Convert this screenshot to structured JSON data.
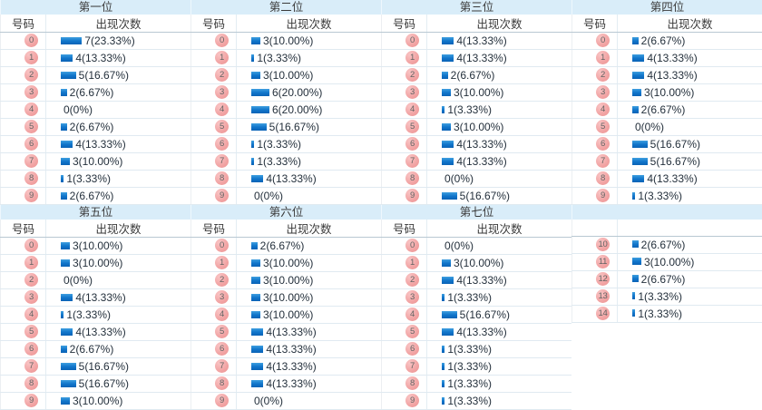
{
  "page": {
    "description_labels": {
      "number_column": "号码",
      "count_column": "出现次数"
    },
    "colors": {
      "header_bg": "#d9edf9",
      "header_text": "#3a3a3a",
      "row_border": "#e0eaf1",
      "subheader_border": "#b9c8d2",
      "bar_top": "#3f9fe0",
      "bar_bottom": "#0a63b6",
      "ball_bg": "#f2a6a6",
      "ball_text": "#636363",
      "value_text": "#24303c"
    }
  },
  "chart_data": [
    {
      "type": "bar",
      "title": "第一位",
      "show_headers": true,
      "categories": [
        "0",
        "1",
        "2",
        "3",
        "4",
        "5",
        "6",
        "7",
        "8",
        "9"
      ],
      "values": [
        7,
        4,
        5,
        2,
        0,
        2,
        4,
        3,
        1,
        2
      ],
      "percents": [
        23.33,
        13.33,
        16.67,
        6.67,
        0,
        6.67,
        13.33,
        10,
        3.33,
        6.67
      ],
      "labels": [
        "7(23.33%)",
        "4(13.33%)",
        "5(16.67%)",
        "2(6.67%)",
        "0(0%)",
        "2(6.67%)",
        "4(13.33%)",
        "3(10.00%)",
        "1(3.33%)",
        "2(6.67%)"
      ]
    },
    {
      "type": "bar",
      "title": "第二位",
      "show_headers": true,
      "categories": [
        "0",
        "1",
        "2",
        "3",
        "4",
        "5",
        "6",
        "7",
        "8",
        "9"
      ],
      "values": [
        3,
        1,
        3,
        6,
        6,
        5,
        1,
        1,
        4,
        0
      ],
      "percents": [
        10,
        3.33,
        10,
        20,
        20,
        16.67,
        3.33,
        3.33,
        13.33,
        0
      ],
      "labels": [
        "3(10.00%)",
        "1(3.33%)",
        "3(10.00%)",
        "6(20.00%)",
        "6(20.00%)",
        "5(16.67%)",
        "1(3.33%)",
        "1(3.33%)",
        "4(13.33%)",
        "0(0%)"
      ]
    },
    {
      "type": "bar",
      "title": "第三位",
      "show_headers": true,
      "categories": [
        "0",
        "1",
        "2",
        "3",
        "4",
        "5",
        "6",
        "7",
        "8",
        "9"
      ],
      "values": [
        4,
        4,
        2,
        3,
        1,
        3,
        4,
        4,
        0,
        5
      ],
      "percents": [
        13.33,
        13.33,
        6.67,
        10,
        3.33,
        10,
        13.33,
        13.33,
        0,
        16.67
      ],
      "labels": [
        "4(13.33%)",
        "4(13.33%)",
        "2(6.67%)",
        "3(10.00%)",
        "1(3.33%)",
        "3(10.00%)",
        "4(13.33%)",
        "4(13.33%)",
        "0(0%)",
        "5(16.67%)"
      ]
    },
    {
      "type": "bar",
      "title": "第四位",
      "show_headers": true,
      "categories": [
        "0",
        "1",
        "2",
        "3",
        "4",
        "5",
        "6",
        "7",
        "8",
        "9"
      ],
      "values": [
        2,
        4,
        4,
        3,
        2,
        0,
        5,
        5,
        4,
        1
      ],
      "percents": [
        6.67,
        13.33,
        13.33,
        10,
        6.67,
        0,
        16.67,
        16.67,
        13.33,
        3.33
      ],
      "labels": [
        "2(6.67%)",
        "4(13.33%)",
        "4(13.33%)",
        "3(10.00%)",
        "2(6.67%)",
        "0(0%)",
        "5(16.67%)",
        "5(16.67%)",
        "4(13.33%)",
        "1(3.33%)"
      ]
    },
    {
      "type": "bar",
      "title": "第五位",
      "show_headers": true,
      "categories": [
        "0",
        "1",
        "2",
        "3",
        "4",
        "5",
        "6",
        "7",
        "8",
        "9"
      ],
      "values": [
        3,
        3,
        0,
        4,
        1,
        4,
        2,
        5,
        5,
        3
      ],
      "percents": [
        10,
        10,
        0,
        13.33,
        3.33,
        13.33,
        6.67,
        16.67,
        16.67,
        10
      ],
      "labels": [
        "3(10.00%)",
        "3(10.00%)",
        "0(0%)",
        "4(13.33%)",
        "1(3.33%)",
        "4(13.33%)",
        "2(6.67%)",
        "5(16.67%)",
        "5(16.67%)",
        "3(10.00%)"
      ]
    },
    {
      "type": "bar",
      "title": "第六位",
      "show_headers": true,
      "categories": [
        "0",
        "1",
        "2",
        "3",
        "4",
        "5",
        "6",
        "7",
        "8",
        "9"
      ],
      "values": [
        2,
        3,
        3,
        3,
        3,
        4,
        4,
        4,
        4,
        0
      ],
      "percents": [
        6.67,
        10,
        10,
        10,
        10,
        13.33,
        13.33,
        13.33,
        13.33,
        0
      ],
      "labels": [
        "2(6.67%)",
        "3(10.00%)",
        "3(10.00%)",
        "3(10.00%)",
        "3(10.00%)",
        "4(13.33%)",
        "4(13.33%)",
        "4(13.33%)",
        "4(13.33%)",
        "0(0%)"
      ]
    },
    {
      "type": "bar",
      "title": "第七位",
      "show_headers": true,
      "categories": [
        "0",
        "1",
        "2",
        "3",
        "4",
        "5",
        "6",
        "7",
        "8",
        "9"
      ],
      "values": [
        0,
        3,
        4,
        1,
        5,
        4,
        1,
        1,
        1,
        1
      ],
      "percents": [
        0,
        10,
        13.33,
        3.33,
        16.67,
        13.33,
        3.33,
        3.33,
        3.33,
        3.33
      ],
      "labels": [
        "0(0%)",
        "3(10.00%)",
        "4(13.33%)",
        "1(3.33%)",
        "5(16.67%)",
        "4(13.33%)",
        "1(3.33%)",
        "1(3.33%)",
        "1(3.33%)",
        "1(3.33%)"
      ]
    },
    {
      "type": "bar",
      "title": "",
      "show_headers": false,
      "categories": [
        "10",
        "11",
        "12",
        "13",
        "14"
      ],
      "values": [
        2,
        3,
        2,
        1,
        1
      ],
      "percents": [
        6.67,
        10,
        6.67,
        3.33,
        3.33
      ],
      "labels": [
        "2(6.67%)",
        "3(10.00%)",
        "2(6.67%)",
        "1(3.33%)",
        "1(3.33%)"
      ]
    }
  ]
}
